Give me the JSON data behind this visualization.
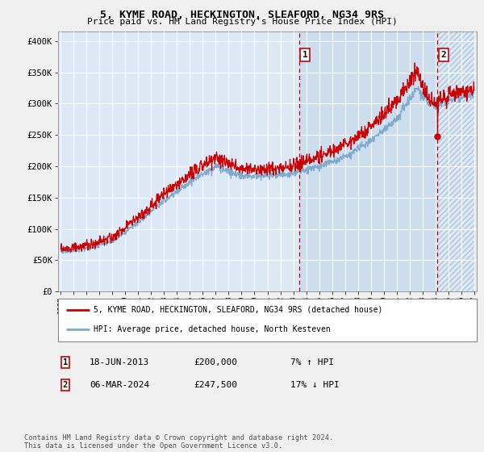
{
  "title": "5, KYME ROAD, HECKINGTON, SLEAFORD, NG34 9RS",
  "subtitle": "Price paid vs. HM Land Registry's House Price Index (HPI)",
  "legend_line1": "5, KYME ROAD, HECKINGTON, SLEAFORD, NG34 9RS (detached house)",
  "legend_line2": "HPI: Average price, detached house, North Kesteven",
  "annotation1_date": "18-JUN-2013",
  "annotation1_price": "£200,000",
  "annotation1_hpi": "7% ↑ HPI",
  "annotation2_date": "06-MAR-2024",
  "annotation2_price": "£247,500",
  "annotation2_hpi": "17% ↓ HPI",
  "footnote": "Contains HM Land Registry data © Crown copyright and database right 2024.\nThis data is licensed under the Open Government Licence v3.0.",
  "yticks": [
    0,
    50000,
    100000,
    150000,
    200000,
    250000,
    300000,
    350000,
    400000
  ],
  "ylim": [
    0,
    415000
  ],
  "sale1_x": 2013.46,
  "sale1_y": 200000,
  "sale2_x": 2024.17,
  "sale2_y": 247500,
  "xmin": 1994.8,
  "xmax": 2027.2,
  "plot_bg": "#dce8f5",
  "highlight_bg": "#ccddf0",
  "hatch_color": "#b8cce0",
  "grid_color": "#ffffff",
  "red_line_color": "#cc0000",
  "blue_line_color": "#7faacc",
  "fig_bg": "#f0f0f0",
  "box_border": "#cc0000"
}
